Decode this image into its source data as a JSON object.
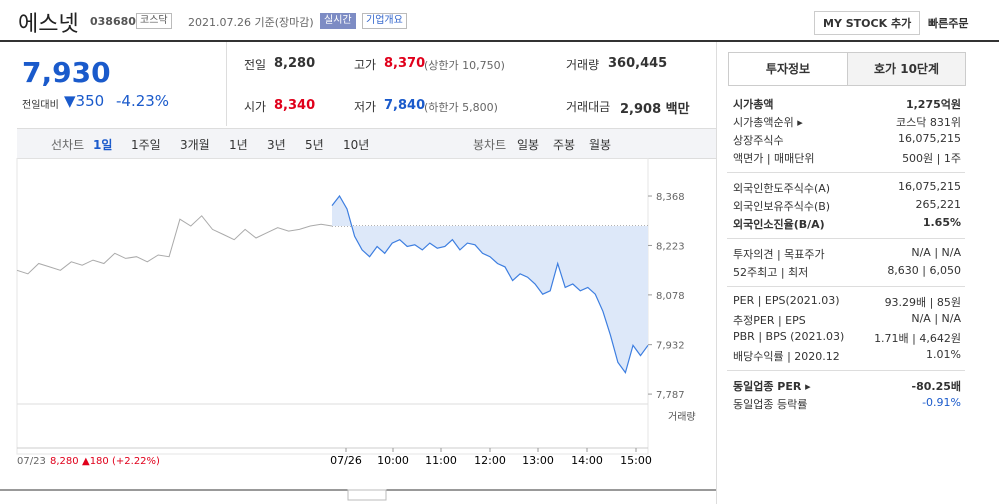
{
  "header": {
    "title": "에스넷",
    "code": "038680",
    "market": "코스닥",
    "date": "2021.07.26 기준(장마감)",
    "realtime": "실시간",
    "company_button": "기업개요",
    "mystock_button": "MY STOCK 추가",
    "quick_order": "빠른주문"
  },
  "price": {
    "current": "7,930",
    "change_label": "전일대비",
    "change": "350",
    "change_rate": "-4.23%"
  },
  "quotes": {
    "rows": [
      [
        {
          "label": "전일",
          "value": "8,280"
        },
        {
          "label": "고가",
          "value": "8,370",
          "note": "(상한가 10,750)"
        },
        {
          "label": "거래량",
          "value": "360,445"
        }
      ],
      [
        {
          "label": "시가",
          "value": "8,340"
        },
        {
          "label": "저가",
          "value": "7,840",
          "note": "(하한가 5,800)"
        },
        {
          "label": "거래대금",
          "value": "2,908 백만"
        }
      ]
    ]
  },
  "tabs": {
    "line_label": "선차트",
    "line_periods": [
      "1일",
      "1주일",
      "3개월",
      "1년",
      "3년",
      "5년",
      "10년"
    ],
    "candle_label": "봉차트",
    "candle_periods": [
      "일봉",
      "주봉",
      "월봉"
    ]
  },
  "price_chart": {
    "type": "line",
    "ylim": [
      7755,
      8415
    ],
    "yticks": [
      {
        "value": 8368,
        "label": "8,368"
      },
      {
        "value": 8223,
        "label": "8,223"
      },
      {
        "value": 8078,
        "label": "8,078"
      },
      {
        "value": 7932,
        "label": "7,932"
      },
      {
        "value": 7787,
        "label": "7,787"
      }
    ],
    "baseline": 8280,
    "x_labels": [
      "07/26",
      "10:00",
      "11:00",
      "12:00",
      "13:00",
      "14:00",
      "15:00"
    ],
    "previous_day": [
      8150,
      8140,
      8170,
      8160,
      8150,
      8175,
      8165,
      8180,
      8170,
      8200,
      8185,
      8190,
      8175,
      8195,
      8190,
      8300,
      8280,
      8310,
      8270,
      8255,
      8240,
      8270,
      8245,
      8260,
      8275,
      8265,
      8270,
      8280,
      8285,
      8280
    ],
    "today": [
      8340,
      8368,
      8330,
      8250,
      8210,
      8190,
      8220,
      8200,
      8230,
      8240,
      8220,
      8225,
      8210,
      8230,
      8215,
      8220,
      8240,
      8210,
      8230,
      8225,
      8200,
      8190,
      8170,
      8160,
      8120,
      8140,
      8130,
      8110,
      8080,
      8090,
      8170,
      8100,
      8110,
      8090,
      8100,
      8080,
      8030,
      7960,
      7880,
      7850,
      7930,
      7900,
      7930
    ],
    "volume_label": "거래량",
    "footer": {
      "date": "07/23",
      "price": "8,280",
      "change": "▲180",
      "rate": "(+2.22%)"
    }
  },
  "info": {
    "tabs": [
      "투자정보",
      "호가 10단계"
    ],
    "groups": [
      [
        {
          "label": "시가총액",
          "value": "1,275억원",
          "bold": true
        },
        {
          "label": "시가총액순위 ▸",
          "value": "코스닥 831위"
        },
        {
          "label": "상장주식수",
          "value": "16,075,215"
        },
        {
          "label": "액면가 | 매매단위",
          "value": "500원 | 1주"
        }
      ],
      [
        {
          "label": "외국인한도주식수(A)",
          "value": "16,075,215"
        },
        {
          "label": "외국인보유주식수(B)",
          "value": "265,221"
        },
        {
          "label": "외국인소진율(B/A)",
          "value": "1.65%",
          "bold": true
        }
      ],
      [
        {
          "label": "투자의견 | 목표주가",
          "value": "N/A | N/A"
        },
        {
          "label": "52주최고 | 최저",
          "value": "8,630 | 6,050"
        }
      ],
      [
        {
          "label": "PER | EPS(2021.03)",
          "value": "93.29배 | 85원"
        },
        {
          "label": "추정PER | EPS",
          "value": "N/A | N/A"
        },
        {
          "label": "PBR | BPS (2021.03)",
          "value": "1.71배 | 4,642원"
        },
        {
          "label": "배당수익률 | 2020.12",
          "value": "1.01%"
        }
      ],
      [
        {
          "label": "동일업종 PER ▸",
          "value": "-80.25배",
          "bold": true
        },
        {
          "label": "동일업종 등락률",
          "value": "-0.91%",
          "blue": true
        }
      ]
    ]
  }
}
